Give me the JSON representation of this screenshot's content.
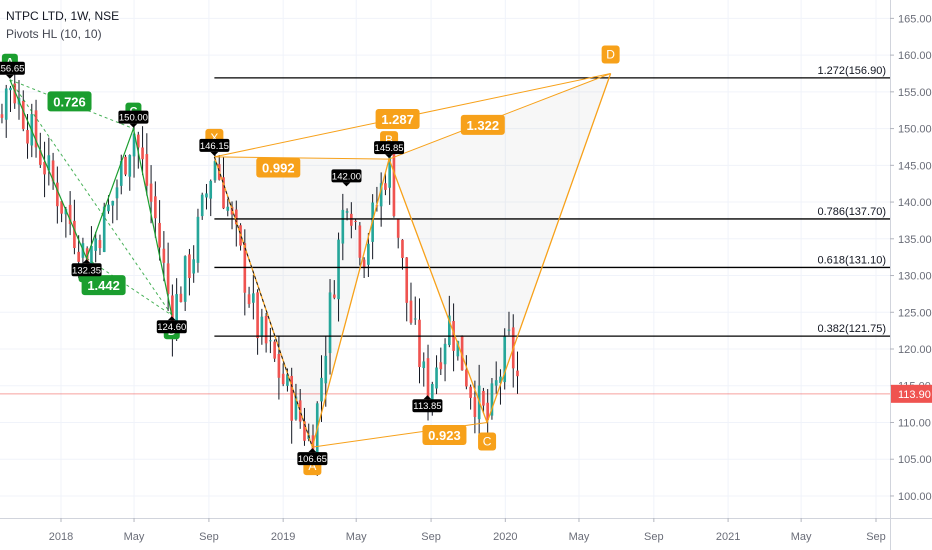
{
  "header": {
    "symbol": "NTPC LTD, 1W, NSE",
    "indicator": "Pivots HL (10, 10)"
  },
  "colors": {
    "up": "#26a69a",
    "down": "#ef5350",
    "green_pattern": "#1b9e2f",
    "orange_pattern": "#f7a11a",
    "last_price": "#ef5350",
    "level_line": "#000000"
  },
  "chart_data": {
    "type": "candlestick",
    "title": "NTPC LTD, 1W, NSE",
    "indicator": "Pivots HL (10, 10)",
    "y_axis": {
      "ylim": [
        97,
        167.5
      ],
      "ticks": [
        "165.00",
        "160.00",
        "155.00",
        "150.00",
        "145.00",
        "140.00",
        "135.00",
        "130.00",
        "125.00",
        "120.00",
        "115.00",
        "110.00",
        "105.00",
        "100.00"
      ],
      "position": "right"
    },
    "x_axis": {
      "labels": [
        {
          "label": "2018",
          "date": "2018-01-01"
        },
        {
          "label": "May",
          "date": "2018-05-01"
        },
        {
          "label": "Sep",
          "date": "2018-09-01"
        },
        {
          "label": "2019",
          "date": "2019-01-01"
        },
        {
          "label": "May",
          "date": "2019-05-01"
        },
        {
          "label": "Sep",
          "date": "2019-09-01"
        },
        {
          "label": "2020",
          "date": "2020-01-01"
        },
        {
          "label": "May",
          "date": "2020-05-01"
        },
        {
          "label": "Sep",
          "date": "2020-09-01"
        },
        {
          "label": "2021",
          "date": "2021-01-01"
        },
        {
          "label": "May",
          "date": "2021-05-01"
        },
        {
          "label": "Sep",
          "date": "2021-09-01"
        }
      ]
    },
    "last_price": 113.9,
    "last_price_label": "113.90",
    "price_anchors": [
      {
        "date": "2017-08-01",
        "price": 142.0
      },
      {
        "date": "2017-09-04",
        "price": 148.0
      },
      {
        "date": "2017-10-09",
        "price": 156.65
      },
      {
        "date": "2017-11-20",
        "price": 148.0
      },
      {
        "date": "2018-01-01",
        "price": 140.0
      },
      {
        "date": "2018-02-12",
        "price": 132.35
      },
      {
        "date": "2018-03-26",
        "price": 140.0
      },
      {
        "date": "2018-04-30",
        "price": 150.0
      },
      {
        "date": "2018-06-04",
        "price": 138.0
      },
      {
        "date": "2018-07-02",
        "price": 124.6
      },
      {
        "date": "2018-08-06",
        "price": 133.0
      },
      {
        "date": "2018-09-10",
        "price": 146.15
      },
      {
        "date": "2018-10-15",
        "price": 135.0
      },
      {
        "date": "2018-11-19",
        "price": 123.0
      },
      {
        "date": "2018-12-24",
        "price": 117.0
      },
      {
        "date": "2019-02-18",
        "price": 106.65
      },
      {
        "date": "2019-03-18",
        "price": 125.0
      },
      {
        "date": "2019-04-15",
        "price": 142.0
      },
      {
        "date": "2019-05-13",
        "price": 133.0
      },
      {
        "date": "2019-06-24",
        "price": 145.85
      },
      {
        "date": "2019-07-22",
        "price": 127.0
      },
      {
        "date": "2019-08-26",
        "price": 113.85
      },
      {
        "date": "2019-09-30",
        "price": 124.0
      },
      {
        "date": "2019-11-04",
        "price": 115.0
      },
      {
        "date": "2019-12-02",
        "price": 110.0
      },
      {
        "date": "2020-01-06",
        "price": 121.0
      },
      {
        "date": "2020-01-27",
        "price": 113.9
      }
    ],
    "pivot_labels": [
      {
        "text": "156.65",
        "date": "2017-10-09",
        "price": 156.65,
        "pos": "above"
      },
      {
        "text": "150.00",
        "date": "2018-04-30",
        "price": 150.0,
        "pos": "above"
      },
      {
        "text": "132.35",
        "date": "2018-02-12",
        "price": 132.35,
        "pos": "below"
      },
      {
        "text": "124.60",
        "date": "2018-07-02",
        "price": 124.6,
        "pos": "below"
      },
      {
        "text": "146.15",
        "date": "2018-09-10",
        "price": 146.15,
        "pos": "above"
      },
      {
        "text": "142.00",
        "date": "2019-04-15",
        "price": 142.0,
        "pos": "above"
      },
      {
        "text": "145.85",
        "date": "2019-06-24",
        "price": 145.85,
        "pos": "above"
      },
      {
        "text": "113.85",
        "date": "2019-08-26",
        "price": 113.85,
        "pos": "below"
      },
      {
        "text": "106.65",
        "date": "2019-02-18",
        "price": 106.65,
        "pos": "below"
      }
    ],
    "green_pattern": {
      "points": [
        {
          "label": "A",
          "date": "2017-10-09",
          "price": 156.65
        },
        {
          "label": "B",
          "date": "2018-02-12",
          "price": 132.35
        },
        {
          "label": "C",
          "date": "2018-04-30",
          "price": 150.0
        },
        {
          "label": "D",
          "date": "2018-07-02",
          "price": 124.6
        }
      ],
      "ratios": [
        {
          "text": "0.726",
          "date": "2018-01-15",
          "price": 153.7
        },
        {
          "text": "1.442",
          "date": "2018-03-12",
          "price": 128.7
        }
      ]
    },
    "orange_pattern": {
      "points": [
        {
          "label": "X",
          "date": "2018-09-10",
          "price": 146.15
        },
        {
          "label": "A",
          "date": "2019-02-18",
          "price": 106.65
        },
        {
          "label": "B",
          "date": "2019-06-24",
          "price": 145.85
        },
        {
          "label": "C",
          "date": "2019-12-02",
          "price": 110.0
        },
        {
          "label": "D",
          "date": "2020-06-22",
          "price": 157.5
        }
      ],
      "ratios": [
        {
          "text": "0.992",
          "date": "2018-12-24",
          "price": 144.7
        },
        {
          "text": "1.287",
          "date": "2019-07-08",
          "price": 151.3
        },
        {
          "text": "0.923",
          "date": "2019-09-23",
          "price": 108.3
        },
        {
          "text": "1.322",
          "date": "2019-11-25",
          "price": 150.5
        }
      ]
    },
    "fib_levels": [
      {
        "label": "1.272(156.90)",
        "price": 156.9
      },
      {
        "label": "0.786(137.70)",
        "price": 137.7
      },
      {
        "label": "0.618(131.10)",
        "price": 131.1
      },
      {
        "label": "0.382(121.75)",
        "price": 121.75
      }
    ],
    "fib_start_date": "2018-09-10",
    "grid": true
  }
}
